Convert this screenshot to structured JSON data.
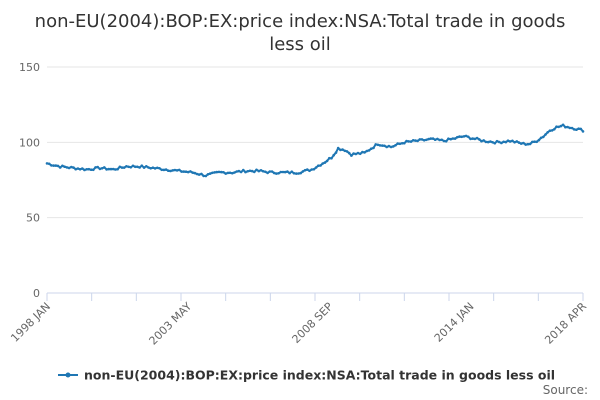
{
  "chart_data": {
    "type": "line",
    "title_lines": [
      "non-EU(2004):BOP:EX:price index:NSA:Total trade in goods",
      "less oil"
    ],
    "ylim": [
      0,
      150
    ],
    "y_ticks": [
      "0",
      "50",
      "100",
      "150"
    ],
    "x_range": [
      1998.0,
      2018.25
    ],
    "x_ticks": [
      {
        "label": "1998 JAN",
        "t": 1998.0
      },
      {
        "label": "2003 MAY",
        "t": 2003.33
      },
      {
        "label": "2008 SEP",
        "t": 2008.67
      },
      {
        "label": "2014 JAN",
        "t": 2014.0
      },
      {
        "label": "2018 APR",
        "t": 2018.25
      }
    ],
    "grid": "horizontal",
    "legend_position": "bottom",
    "series": [
      {
        "name": "non-EU(2004):BOP:EX:price index:NSA:Total trade in goods less oil",
        "color": "#1f77b4",
        "points": [
          [
            1998.0,
            86
          ],
          [
            1998.5,
            84
          ],
          [
            1999.0,
            83
          ],
          [
            1999.5,
            82
          ],
          [
            2000.0,
            83
          ],
          [
            2000.5,
            82
          ],
          [
            2001.0,
            84
          ],
          [
            2001.5,
            84
          ],
          [
            2002.0,
            83
          ],
          [
            2002.5,
            82
          ],
          [
            2003.0,
            81
          ],
          [
            2003.5,
            80
          ],
          [
            2004.0,
            78
          ],
          [
            2004.5,
            80
          ],
          [
            2005.0,
            80
          ],
          [
            2005.5,
            81
          ],
          [
            2006.0,
            81
          ],
          [
            2006.5,
            80
          ],
          [
            2007.0,
            80
          ],
          [
            2007.5,
            80
          ],
          [
            2008.0,
            82
          ],
          [
            2008.5,
            87
          ],
          [
            2008.75,
            90
          ],
          [
            2009.0,
            96
          ],
          [
            2009.25,
            95
          ],
          [
            2009.5,
            92
          ],
          [
            2010.0,
            93
          ],
          [
            2010.5,
            99
          ],
          [
            2011.0,
            97
          ],
          [
            2011.5,
            100
          ],
          [
            2012.0,
            101
          ],
          [
            2012.5,
            102
          ],
          [
            2013.0,
            101
          ],
          [
            2013.5,
            103
          ],
          [
            2013.75,
            104
          ],
          [
            2014.0,
            103
          ],
          [
            2014.5,
            101
          ],
          [
            2015.0,
            100
          ],
          [
            2015.5,
            101
          ],
          [
            2016.0,
            99
          ],
          [
            2016.25,
            99
          ],
          [
            2016.5,
            101
          ],
          [
            2016.75,
            104
          ],
          [
            2017.0,
            108
          ],
          [
            2017.25,
            110
          ],
          [
            2017.5,
            111
          ],
          [
            2017.75,
            110
          ],
          [
            2018.0,
            109
          ],
          [
            2018.25,
            108
          ]
        ]
      }
    ],
    "source_label": "Source:"
  }
}
